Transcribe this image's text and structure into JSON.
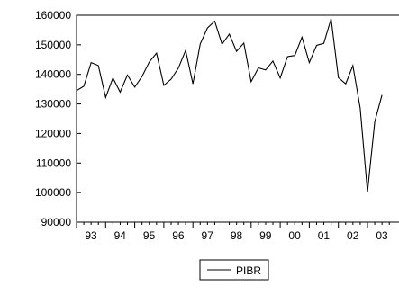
{
  "chart_data": {
    "type": "line",
    "title": "",
    "xlabel": "",
    "ylabel": "",
    "ylim": [
      90000,
      160000
    ],
    "xlim": [
      1993.0,
      2003.0
    ],
    "yticks": [
      90000,
      100000,
      110000,
      120000,
      130000,
      140000,
      150000,
      160000
    ],
    "ytick_labels": [
      "90000",
      "100000",
      "110000",
      "120000",
      "130000",
      "140000",
      "150000",
      "160000"
    ],
    "xtick_labels": [
      "93",
      "94",
      "95",
      "96",
      "97",
      "98",
      "99",
      "00",
      "01",
      "02",
      "03"
    ],
    "grid": false,
    "legend_position": "bottom-center",
    "series": [
      {
        "name": "PIBR",
        "color": "#000000",
        "x": [
          1993.0,
          1993.25,
          1993.5,
          1993.75,
          1994.0,
          1994.25,
          1994.5,
          1994.75,
          1995.0,
          1995.25,
          1995.5,
          1995.75,
          1996.0,
          1996.25,
          1996.5,
          1996.75,
          1997.0,
          1997.25,
          1997.5,
          1997.75,
          1998.0,
          1998.25,
          1998.5,
          1998.75,
          1999.0,
          1999.25,
          1999.5,
          1999.75,
          2000.0,
          2000.25,
          2000.5,
          2000.75,
          2001.0,
          2001.25,
          2001.5,
          2001.75,
          2002.0,
          2002.25,
          2002.5,
          2002.75,
          2003.0
        ],
        "values": [
          134500,
          136000,
          144000,
          143000,
          132200,
          138800,
          134000,
          139800,
          135700,
          139300,
          144200,
          147200,
          136300,
          138400,
          142100,
          148100,
          136800,
          150300,
          155700,
          158000,
          150200,
          153600,
          147800,
          150600,
          137500,
          142200,
          141500,
          144500,
          138800,
          146000,
          146400,
          152600,
          144000,
          149800,
          150500,
          158800,
          138900,
          136800,
          143000,
          128600,
          100200
        ]
      }
    ],
    "extra_points": {
      "x": [
        2003.25,
        2003.5
      ],
      "values": [
        124000,
        133000
      ]
    }
  }
}
